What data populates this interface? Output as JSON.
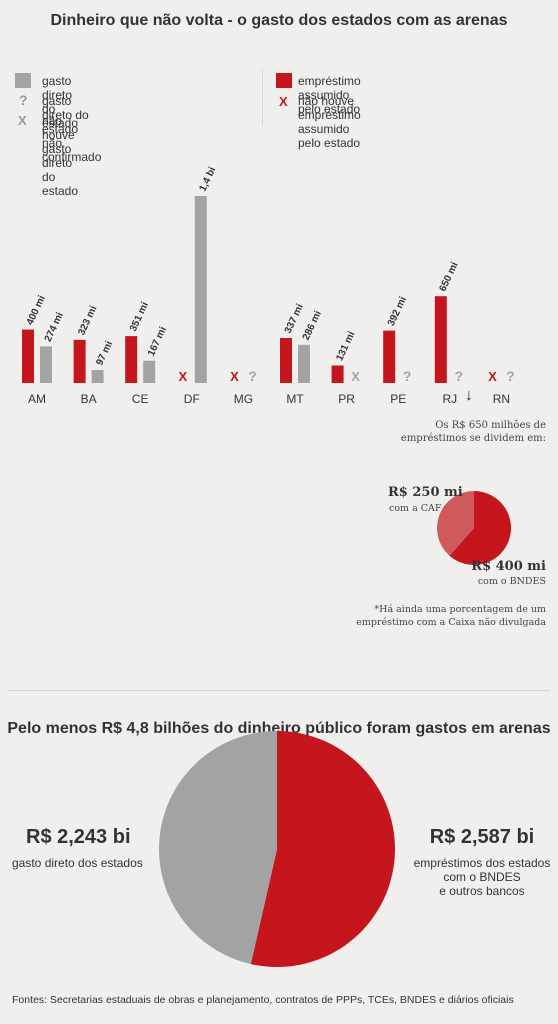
{
  "title": "Dinheiro que não volta - o gasto dos estados com as arenas",
  "legend": {
    "gray_label": "gasto direto do estado",
    "question_label": "gasto direto do estado não confirmado",
    "gray_x_label": "não houve gasto direto do estado",
    "red_label": "empréstimo assumido pelo estado",
    "red_x_label": "não houve empréstimo assumido pelo estado",
    "question_symbol": "?",
    "x_symbol": "X"
  },
  "colors": {
    "red": "#c4161c",
    "gray": "#a3a3a3",
    "pink": "#d0595c",
    "background": "#f0efee"
  },
  "chart_data": [
    {
      "type": "bar",
      "categories": [
        "AM",
        "BA",
        "CE",
        "DF",
        "MG",
        "MT",
        "PR",
        "PE",
        "RJ",
        "RN"
      ],
      "series": [
        {
          "name": "empréstimo assumido pelo estado",
          "values": [
            400,
            323,
            351,
            null,
            null,
            337,
            131,
            392,
            650,
            null
          ],
          "labels": [
            "400 mi",
            "323 mi",
            "351 mi",
            "X",
            "X",
            "337 mi",
            "131 mi",
            "392 mi",
            "650 mi",
            "X"
          ]
        },
        {
          "name": "gasto direto do estado",
          "values": [
            274,
            97,
            167,
            1400,
            null,
            286,
            null,
            null,
            null,
            null
          ],
          "labels": [
            "274 mi",
            "97 mi",
            "167 mi",
            "1,4 bi",
            "?",
            "286 mi",
            "X",
            "?",
            "?",
            "?"
          ]
        }
      ],
      "ylabel": "",
      "ylim": [
        0,
        1400
      ]
    },
    {
      "type": "pie",
      "categories": [
        "com a CAF",
        "com o BNDES"
      ],
      "values": [
        250,
        400
      ],
      "labels": [
        "R$ 250 mi",
        "R$ 400 mi"
      ]
    },
    {
      "type": "pie",
      "categories": [
        "gasto direto dos estados",
        "empréstimos dos estados com o BNDES e outros bancos"
      ],
      "values": [
        2.243,
        2.587
      ],
      "labels": [
        "R$ 2,243 bi",
        "R$ 2,587 bi"
      ]
    }
  ],
  "rj_note": {
    "arrow": "↓",
    "line1": "Os R$ 650 milhões de",
    "line2": "empréstimos se dividem em:",
    "caf_value": "R$ 250 mi",
    "caf_caption": "com a CAF",
    "bndes_value": "R$ 400 mi",
    "bndes_caption": "com o BNDES",
    "footnote1": "*Há ainda uma porcentagem de um",
    "footnote2": "empréstimo com a Caixa não divulgada"
  },
  "section2": {
    "title": "Pelo menos R$ 4,8 bilhões do dinheiro público foram gastos em arenas",
    "left_value": "R$ 2,243 bi",
    "left_caption": "gasto direto dos estados",
    "right_value": "R$ 2,587 bi",
    "right_caption_1": "empréstimos dos estados",
    "right_caption_2": "com o BNDES",
    "right_caption_3": "e outros bancos"
  },
  "footer": "Fontes: Secretarias estaduais de obras e planejamento, contratos de PPPs, TCEs, BNDES e diários oficiais"
}
